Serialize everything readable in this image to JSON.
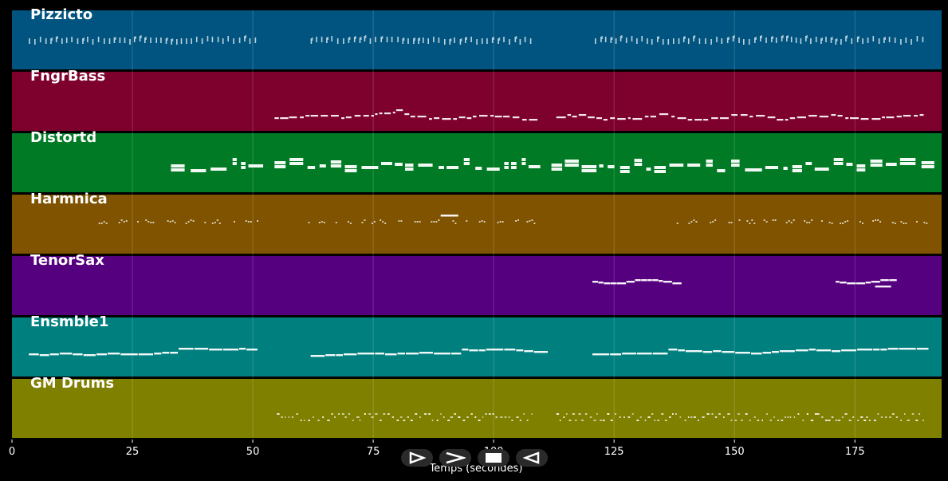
{
  "app": {
    "axis": {
      "xlabel": "Temps (secondes)",
      "ticks": [
        "0",
        "25",
        "50",
        "75",
        "100",
        "125",
        "150",
        "175"
      ],
      "tick_values": [
        0,
        25,
        50,
        75,
        100,
        125,
        150,
        175
      ],
      "xmax": 193
    },
    "tracks": [
      {
        "name": "Pizzicto",
        "color": "#00547f",
        "style": "pizz",
        "segments": [
          [
            3.5,
            50.5,
            0.3
          ],
          [
            62,
            108.5,
            0.3
          ],
          [
            121,
            189.5,
            0.3
          ]
        ]
      },
      {
        "name": "FngrBass",
        "color": "#7d002d",
        "style": "bass",
        "segments": [
          [
            54.5,
            61,
            0.3
          ],
          [
            62,
            109,
            0.25
          ],
          [
            113,
            189.5,
            0.35
          ]
        ]
      },
      {
        "name": "Distortd",
        "color": "#007a24",
        "style": "dist",
        "segments": [
          [
            33,
            49.5,
            0.3
          ],
          [
            54.5,
            110,
            0.2
          ],
          [
            112,
            189.5,
            0.25
          ]
        ]
      },
      {
        "name": "Harmnica",
        "color": "#7f5300",
        "style": "harm",
        "segments": [
          [
            18,
            51,
            0.45
          ],
          [
            61.5,
            108.5,
            0.45
          ],
          [
            138,
            189.5,
            0.45
          ]
        ]
      },
      {
        "name": "TenorSax",
        "color": "#55007f",
        "style": "sax",
        "segments": [
          [
            120.5,
            138.5,
            0.3
          ],
          [
            171,
            182.5,
            0.3
          ]
        ]
      },
      {
        "name": "Ensmble1",
        "color": "#007f7f",
        "style": "ens",
        "segments": [
          [
            3.5,
            51,
            0.35
          ],
          [
            62,
            108.5,
            0.35
          ],
          [
            120.5,
            189.5,
            0.35
          ]
        ]
      },
      {
        "name": "GM Drums",
        "color": "#7f7f00",
        "style": "drums",
        "segments": [
          [
            55,
            108.5,
            0.7
          ],
          [
            113,
            189.5,
            0.7
          ]
        ]
      }
    ]
  },
  "transport": {
    "play_icon": "play-triangle-icon",
    "forward_icon": "fast-forward-icon",
    "stop_icon": "stop-square-icon",
    "rewind_icon": "rewind-triangle-icon"
  }
}
